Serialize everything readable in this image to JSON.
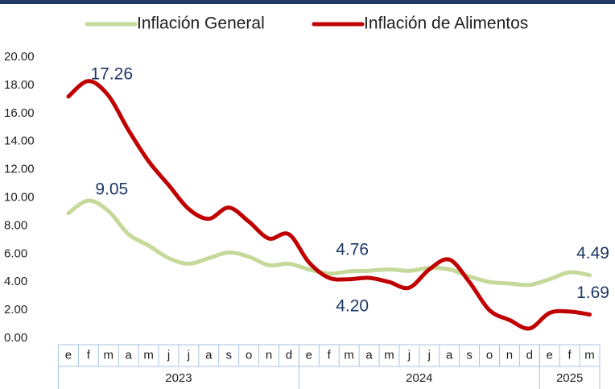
{
  "chart_data": {
    "type": "line",
    "categories": [
      "e",
      "f",
      "m",
      "a",
      "m",
      "j",
      "j",
      "a",
      "s",
      "o",
      "n",
      "d",
      "e",
      "f",
      "m",
      "a",
      "m",
      "j",
      "j",
      "a",
      "s",
      "o",
      "n",
      "d",
      "e",
      "f",
      "m"
    ],
    "x_groups": [
      {
        "label": "2023",
        "span": 12
      },
      {
        "label": "2024",
        "span": 12
      },
      {
        "label": "2025",
        "span": 3
      }
    ],
    "series": [
      {
        "name": "Inflación General",
        "color": "#c5d99a",
        "values": [
          8.9,
          9.8,
          9.05,
          7.4,
          6.6,
          5.7,
          5.3,
          5.7,
          6.1,
          5.8,
          5.2,
          5.3,
          4.9,
          4.6,
          4.76,
          4.8,
          4.9,
          4.8,
          5.0,
          4.9,
          4.4,
          4.0,
          3.9,
          3.8,
          4.2,
          4.7,
          4.49
        ],
        "value_labels": [
          null,
          null,
          "9.05",
          null,
          null,
          null,
          null,
          null,
          null,
          null,
          null,
          null,
          null,
          null,
          "4.76",
          null,
          null,
          null,
          null,
          null,
          null,
          null,
          null,
          null,
          null,
          null,
          "4.49"
        ]
      },
      {
        "name": "Inflación de Alimentos",
        "color": "#c00000",
        "values": [
          17.2,
          18.3,
          17.26,
          14.8,
          12.6,
          10.9,
          9.2,
          8.5,
          9.3,
          8.3,
          7.1,
          7.4,
          5.4,
          4.3,
          4.2,
          4.3,
          4.0,
          3.6,
          4.9,
          5.6,
          4.0,
          2.0,
          1.3,
          0.7,
          1.8,
          1.9,
          1.69
        ],
        "value_labels": [
          null,
          null,
          "17.26",
          null,
          null,
          null,
          null,
          null,
          null,
          null,
          null,
          null,
          null,
          null,
          "4.20",
          null,
          null,
          null,
          null,
          null,
          null,
          null,
          null,
          null,
          null,
          null,
          "1.69"
        ]
      }
    ],
    "ylim": [
      0,
      20
    ],
    "yticks": [
      {
        "value": 0,
        "label": "0.00"
      },
      {
        "value": 2,
        "label": "2.00"
      },
      {
        "value": 4,
        "label": "4.00"
      },
      {
        "value": 6,
        "label": "6.00"
      },
      {
        "value": 8,
        "label": "8.00"
      },
      {
        "value": 10,
        "label": "10.00"
      },
      {
        "value": 12,
        "label": "12.00"
      },
      {
        "value": 14,
        "label": "14.00"
      },
      {
        "value": 16,
        "label": "16.00"
      },
      {
        "value": 18,
        "label": "18.00"
      },
      {
        "value": 20,
        "label": "20.00"
      }
    ],
    "grid": false,
    "legend": "top"
  }
}
